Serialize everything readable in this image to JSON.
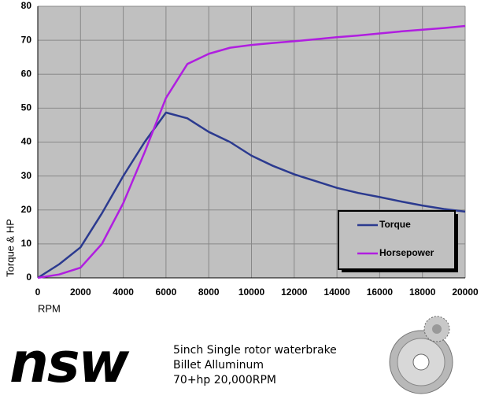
{
  "chart_data": {
    "type": "line",
    "x": [
      0,
      1000,
      2000,
      3000,
      4000,
      5000,
      6000,
      7000,
      8000,
      9000,
      10000,
      11000,
      12000,
      13000,
      14000,
      15000,
      16000,
      17000,
      18000,
      19000,
      20000
    ],
    "series": [
      {
        "name": "Torque",
        "color": "#2b3a8f",
        "values": [
          0,
          4,
          9,
          19,
          30,
          40,
          48.7,
          47,
          43,
          40,
          36,
          33,
          30.5,
          28.5,
          26.5,
          25,
          23.8,
          22.5,
          21.3,
          20.3,
          19.5
        ]
      },
      {
        "name": "Horsepower",
        "color": "#b01ee0",
        "values": [
          0,
          1,
          3,
          10,
          22,
          37,
          53,
          63,
          66,
          67.8,
          68.6,
          69.2,
          69.7,
          70.3,
          70.9,
          71.4,
          72,
          72.6,
          73.1,
          73.6,
          74.2
        ]
      }
    ],
    "xlabel": "RPM",
    "ylabel": "Torque & HP",
    "xlim": [
      0,
      20000
    ],
    "xticks": [
      0,
      2000,
      4000,
      6000,
      8000,
      10000,
      12000,
      14000,
      16000,
      18000,
      20000
    ],
    "ylim": [
      0,
      80
    ],
    "yticks": [
      0,
      10,
      20,
      30,
      40,
      50,
      60,
      70,
      80
    ],
    "grid": true,
    "legend": "lower right"
  },
  "logo": "nsw",
  "caption": [
    "5inch Single rotor waterbrake",
    "Billet Alluminum",
    "70+hp 20,000RPM"
  ]
}
